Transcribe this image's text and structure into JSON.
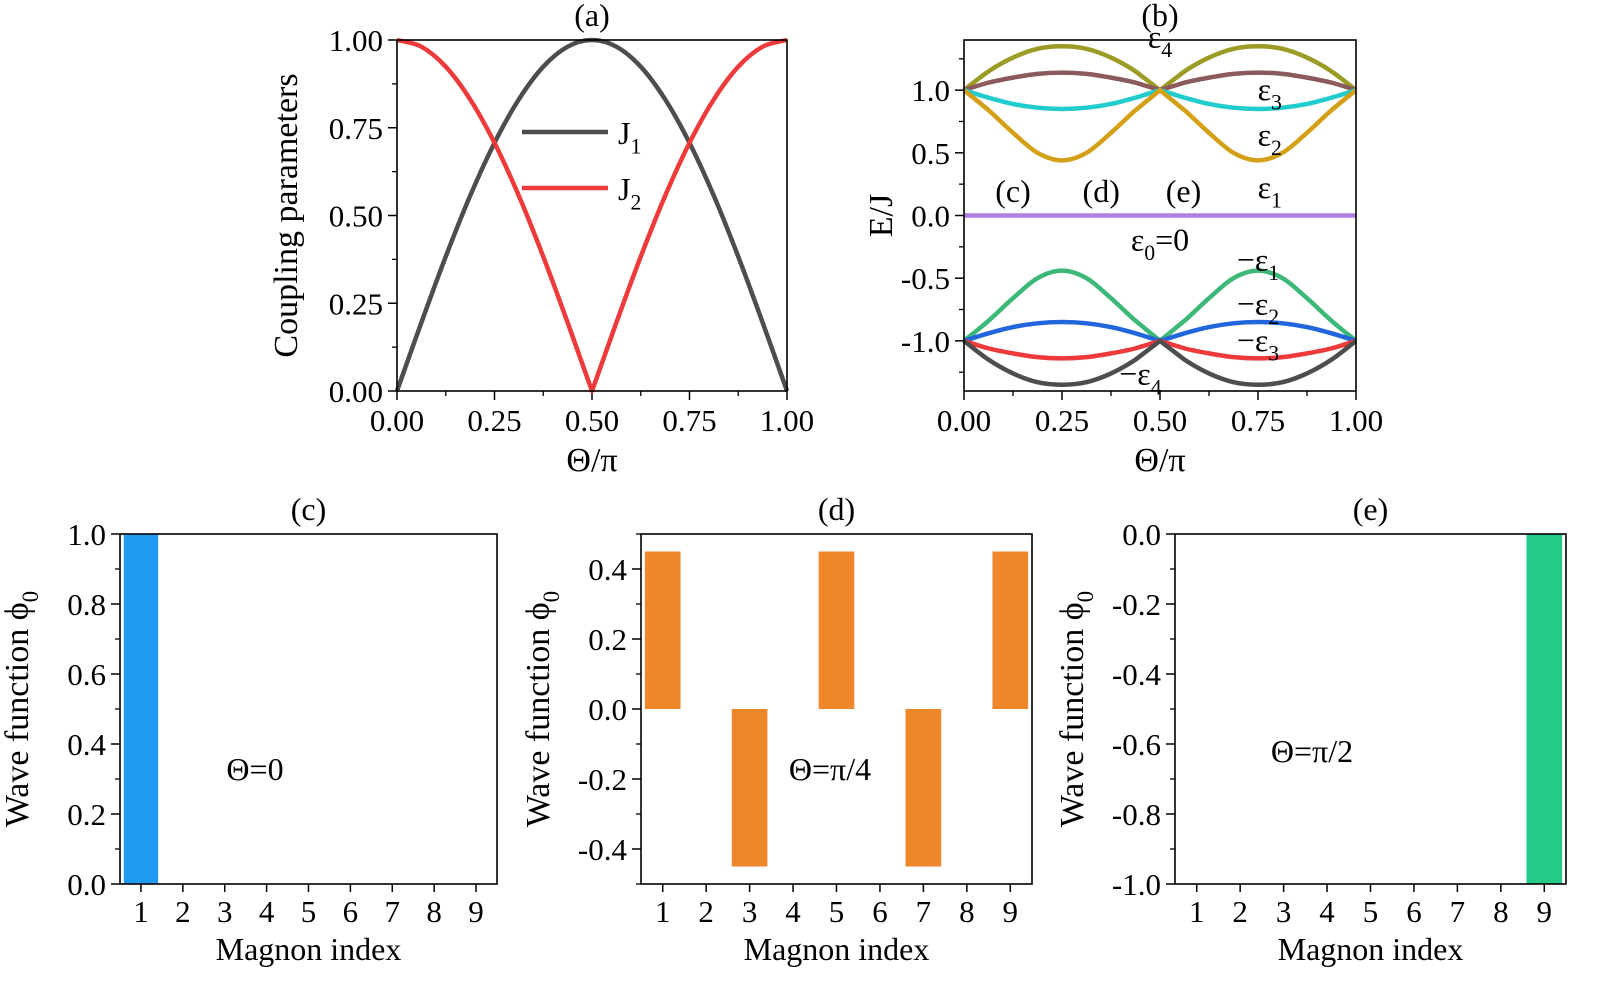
{
  "chart_data": [
    {
      "panel": "(a)",
      "type": "line",
      "xlabel": "Θ/π",
      "ylabel": "Coupling parameters",
      "xlim": [
        0,
        1
      ],
      "ylim": [
        0,
        1
      ],
      "xticks": [
        "0.00",
        "0.25",
        "0.50",
        "0.75",
        "1.00"
      ],
      "yticks": [
        "0.00",
        "0.25",
        "0.50",
        "0.75",
        "1.00"
      ],
      "legend": "center",
      "x": [
        0,
        0.0625,
        0.125,
        0.1875,
        0.25,
        0.3125,
        0.375,
        0.4375,
        0.5,
        0.5625,
        0.625,
        0.6875,
        0.75,
        0.8125,
        0.875,
        0.9375,
        1
      ],
      "series": [
        {
          "name": "J",
          "sub": "1",
          "color": "#4d4d4d",
          "values": [
            0,
            0.195,
            0.383,
            0.556,
            0.707,
            0.831,
            0.924,
            0.981,
            1,
            0.981,
            0.924,
            0.831,
            0.707,
            0.556,
            0.383,
            0.195,
            0
          ]
        },
        {
          "name": "J",
          "sub": "2",
          "color": "#ee3a3a",
          "values": [
            1,
            0.981,
            0.924,
            0.831,
            0.707,
            0.556,
            0.383,
            0.195,
            0,
            0.195,
            0.383,
            0.556,
            0.707,
            0.831,
            0.924,
            0.981,
            1
          ]
        }
      ]
    },
    {
      "panel": "(b)",
      "type": "line",
      "xlabel": "Θ/π",
      "ylabel": "E/J",
      "xlim": [
        0,
        1
      ],
      "ylim": [
        -1.4,
        1.4
      ],
      "xticks": [
        "0.00",
        "0.25",
        "0.50",
        "0.75",
        "1.00"
      ],
      "yticks": [
        "-1.0",
        "-0.5",
        "0.0",
        "0.5",
        "1.0"
      ],
      "x": [
        0,
        0.0625,
        0.125,
        0.1875,
        0.25,
        0.3125,
        0.375,
        0.4375,
        0.5,
        0.5625,
        0.625,
        0.6875,
        0.75,
        0.8125,
        0.875,
        0.9375,
        1
      ],
      "series": [
        {
          "color": "#9b9b25",
          "values": [
            1,
            1.15,
            1.26,
            1.33,
            1.35,
            1.33,
            1.26,
            1.15,
            1,
            1.15,
            1.26,
            1.33,
            1.35,
            1.33,
            1.26,
            1.15,
            1
          ]
        },
        {
          "color": "#8b5a5a",
          "values": [
            1,
            1.06,
            1.1,
            1.13,
            1.14,
            1.13,
            1.1,
            1.06,
            1,
            1.06,
            1.1,
            1.13,
            1.14,
            1.13,
            1.1,
            1.06,
            1
          ]
        },
        {
          "color": "#22cccc",
          "values": [
            1,
            0.94,
            0.89,
            0.86,
            0.85,
            0.86,
            0.89,
            0.94,
            1,
            0.94,
            0.89,
            0.86,
            0.85,
            0.86,
            0.89,
            0.94,
            1
          ]
        },
        {
          "color": "#d4a017",
          "values": [
            1,
            0.84,
            0.66,
            0.5,
            0.44,
            0.5,
            0.66,
            0.84,
            1,
            0.84,
            0.66,
            0.5,
            0.44,
            0.5,
            0.66,
            0.84,
            1
          ]
        },
        {
          "color": "#b07fe0",
          "values": [
            0,
            0,
            0,
            0,
            0,
            0,
            0,
            0,
            0,
            0,
            0,
            0,
            0,
            0,
            0,
            0,
            0
          ]
        },
        {
          "color": "#3cb878",
          "values": [
            -1,
            -0.84,
            -0.66,
            -0.5,
            -0.44,
            -0.5,
            -0.66,
            -0.84,
            -1,
            -0.84,
            -0.66,
            -0.5,
            -0.44,
            -0.5,
            -0.66,
            -0.84,
            -1
          ]
        },
        {
          "color": "#2266dd",
          "values": [
            -1,
            -0.94,
            -0.89,
            -0.86,
            -0.85,
            -0.86,
            -0.89,
            -0.94,
            -1,
            -0.94,
            -0.89,
            -0.86,
            -0.85,
            -0.86,
            -0.89,
            -0.94,
            -1
          ]
        },
        {
          "color": "#ee3a3a",
          "values": [
            -1,
            -1.06,
            -1.1,
            -1.13,
            -1.14,
            -1.13,
            -1.1,
            -1.06,
            -1,
            -1.06,
            -1.1,
            -1.13,
            -1.14,
            -1.13,
            -1.1,
            -1.06,
            -1
          ]
        },
        {
          "color": "#4d4d4d",
          "values": [
            -1,
            -1.15,
            -1.26,
            -1.33,
            -1.35,
            -1.33,
            -1.26,
            -1.15,
            -1,
            -1.15,
            -1.26,
            -1.33,
            -1.35,
            -1.33,
            -1.26,
            -1.15,
            -1
          ]
        }
      ],
      "curve_labels": [
        {
          "base": "ε",
          "sub": "4",
          "x": 0.5,
          "y": 1.42
        },
        {
          "base": "ε",
          "sub": "3",
          "x": 0.78,
          "y": 1.0
        },
        {
          "base": "ε",
          "sub": "2",
          "x": 0.78,
          "y": 0.64
        },
        {
          "base": "ε",
          "sub": "1",
          "x": 0.78,
          "y": 0.22
        },
        {
          "base": "ε",
          "sub": "0",
          "suffix": "=0",
          "x": 0.5,
          "y": -0.2
        },
        {
          "base": "−ε",
          "sub": "1",
          "x": 0.75,
          "y": -0.36
        },
        {
          "base": "−ε",
          "sub": "2",
          "x": 0.75,
          "y": -0.71
        },
        {
          "base": "−ε",
          "sub": "3",
          "x": 0.75,
          "y": -1.0
        },
        {
          "base": "−ε",
          "sub": "4",
          "x": 0.45,
          "y": -1.27
        }
      ],
      "markers": [
        {
          "text": "(c)",
          "color": "#22a0ee",
          "x": 0.125,
          "y": 0.17
        },
        {
          "text": "(d)",
          "color": "#ee3a3a",
          "x": 0.35,
          "y": 0.17
        },
        {
          "text": "(e)",
          "color": "#33dd33",
          "x": 0.56,
          "y": 0.17
        }
      ]
    },
    {
      "panel": "(c)",
      "type": "bar",
      "xlabel": "Magnon index",
      "ylabel": "Wave function ϕ₀",
      "categories": [
        "1",
        "2",
        "3",
        "4",
        "5",
        "6",
        "7",
        "8",
        "9"
      ],
      "values": [
        1,
        0,
        0,
        0,
        0,
        0,
        0,
        0,
        0
      ],
      "ylim": [
        0,
        1
      ],
      "yticks": [
        "0.0",
        "0.2",
        "0.4",
        "0.6",
        "0.8",
        "1.0"
      ],
      "color": "#1e9bf0",
      "annotation": "Θ=0"
    },
    {
      "panel": "(d)",
      "type": "bar",
      "xlabel": "Magnon index",
      "ylabel": "Wave function ϕ₀",
      "categories": [
        "1",
        "2",
        "3",
        "4",
        "5",
        "6",
        "7",
        "8",
        "9"
      ],
      "values": [
        0.45,
        0,
        -0.45,
        0,
        0.45,
        0,
        -0.45,
        0,
        0.45
      ],
      "ylim": [
        -0.5,
        0.5
      ],
      "yticks": [
        "-0.4",
        "-0.2",
        "0.0",
        "0.2",
        "0.4"
      ],
      "color": "#f0862a",
      "annotation": "Θ=π/4"
    },
    {
      "panel": "(e)",
      "type": "bar",
      "xlabel": "Magnon index",
      "ylabel": "Wave function ϕ₀",
      "categories": [
        "1",
        "2",
        "3",
        "4",
        "5",
        "6",
        "7",
        "8",
        "9"
      ],
      "values": [
        0,
        0,
        0,
        0,
        0,
        0,
        0,
        0,
        -1
      ],
      "ylim": [
        -1,
        0
      ],
      "yticks": [
        "-1.0",
        "-0.8",
        "-0.6",
        "-0.4",
        "-0.2",
        "0.0"
      ],
      "color": "#22cc88",
      "annotation": "Θ=π/2"
    }
  ]
}
